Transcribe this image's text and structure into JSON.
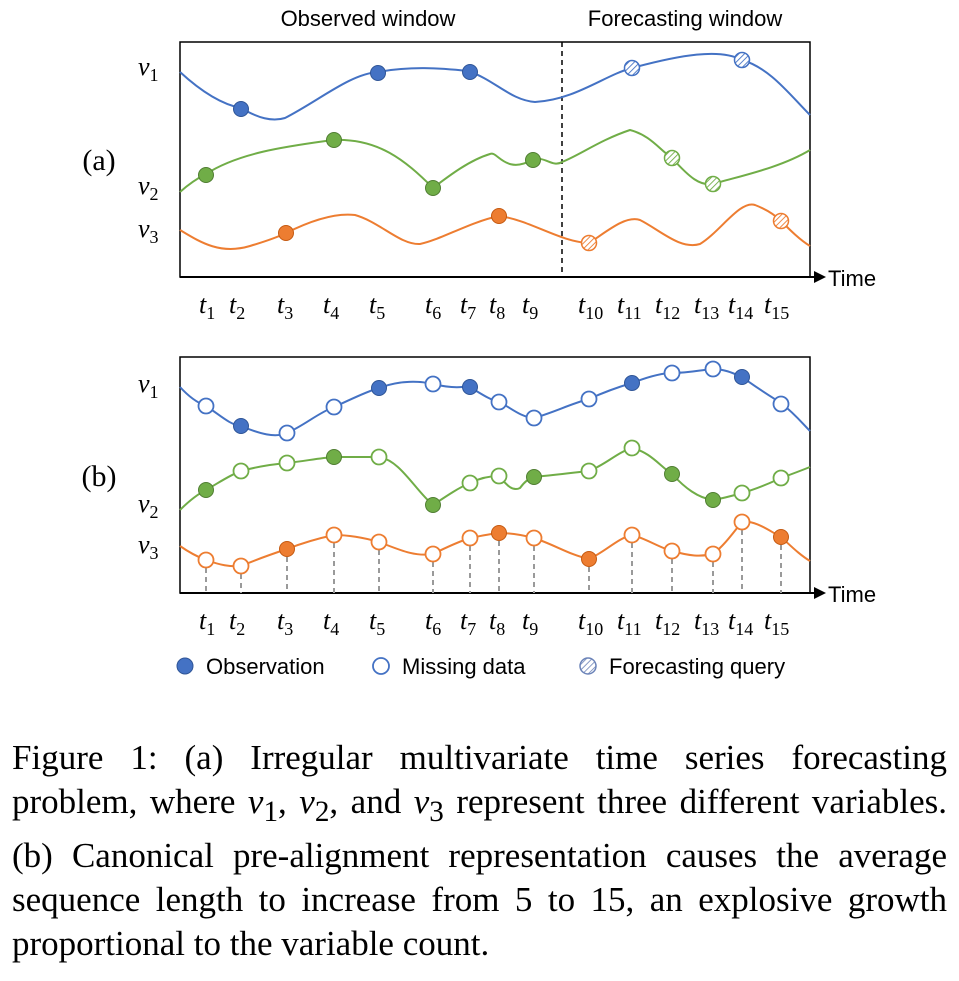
{
  "windows": {
    "observed": "Observed window",
    "forecasting": "Forecasting window"
  },
  "panel_labels": [
    "(a)",
    "(b)"
  ],
  "axis_label": "Time",
  "variables": [
    {
      "base": "v",
      "sub": "1",
      "color": "#4472C4"
    },
    {
      "base": "v",
      "sub": "2",
      "color": "#70AD47"
    },
    {
      "base": "v",
      "sub": "3",
      "color": "#ED7D31"
    }
  ],
  "time_ticks": [
    {
      "base": "t",
      "sub": "1"
    },
    {
      "base": "t",
      "sub": "2"
    },
    {
      "base": "t",
      "sub": "3"
    },
    {
      "base": "t",
      "sub": "4"
    },
    {
      "base": "t",
      "sub": "5"
    },
    {
      "base": "t",
      "sub": "6"
    },
    {
      "base": "t",
      "sub": "7"
    },
    {
      "base": "t",
      "sub": "8"
    },
    {
      "base": "t",
      "sub": "9"
    },
    {
      "base": "t",
      "sub": "10"
    },
    {
      "base": "t",
      "sub": "11"
    },
    {
      "base": "t",
      "sub": "12"
    },
    {
      "base": "t",
      "sub": "13"
    },
    {
      "base": "t",
      "sub": "14"
    },
    {
      "base": "t",
      "sub": "15"
    }
  ],
  "legend": [
    {
      "label": "Observation",
      "kind": "filled"
    },
    {
      "label": "Missing data",
      "kind": "empty"
    },
    {
      "label": "Forecasting query",
      "kind": "hatched"
    }
  ],
  "caption": {
    "p1": "Figure 1: (a) Irregular multivariate time series forecasting problem, where ",
    "v1": "v",
    "s1": "1",
    "p2": ", ",
    "v2": "v",
    "s2": "2",
    "p3": ", and ",
    "v3": "v",
    "s3": "3",
    "p4": " represent three different variables. (b) Canonical pre-alignment representation causes the average sequence length to increase from 5 to 15, an explosive growth proportional to the variable count."
  }
}
